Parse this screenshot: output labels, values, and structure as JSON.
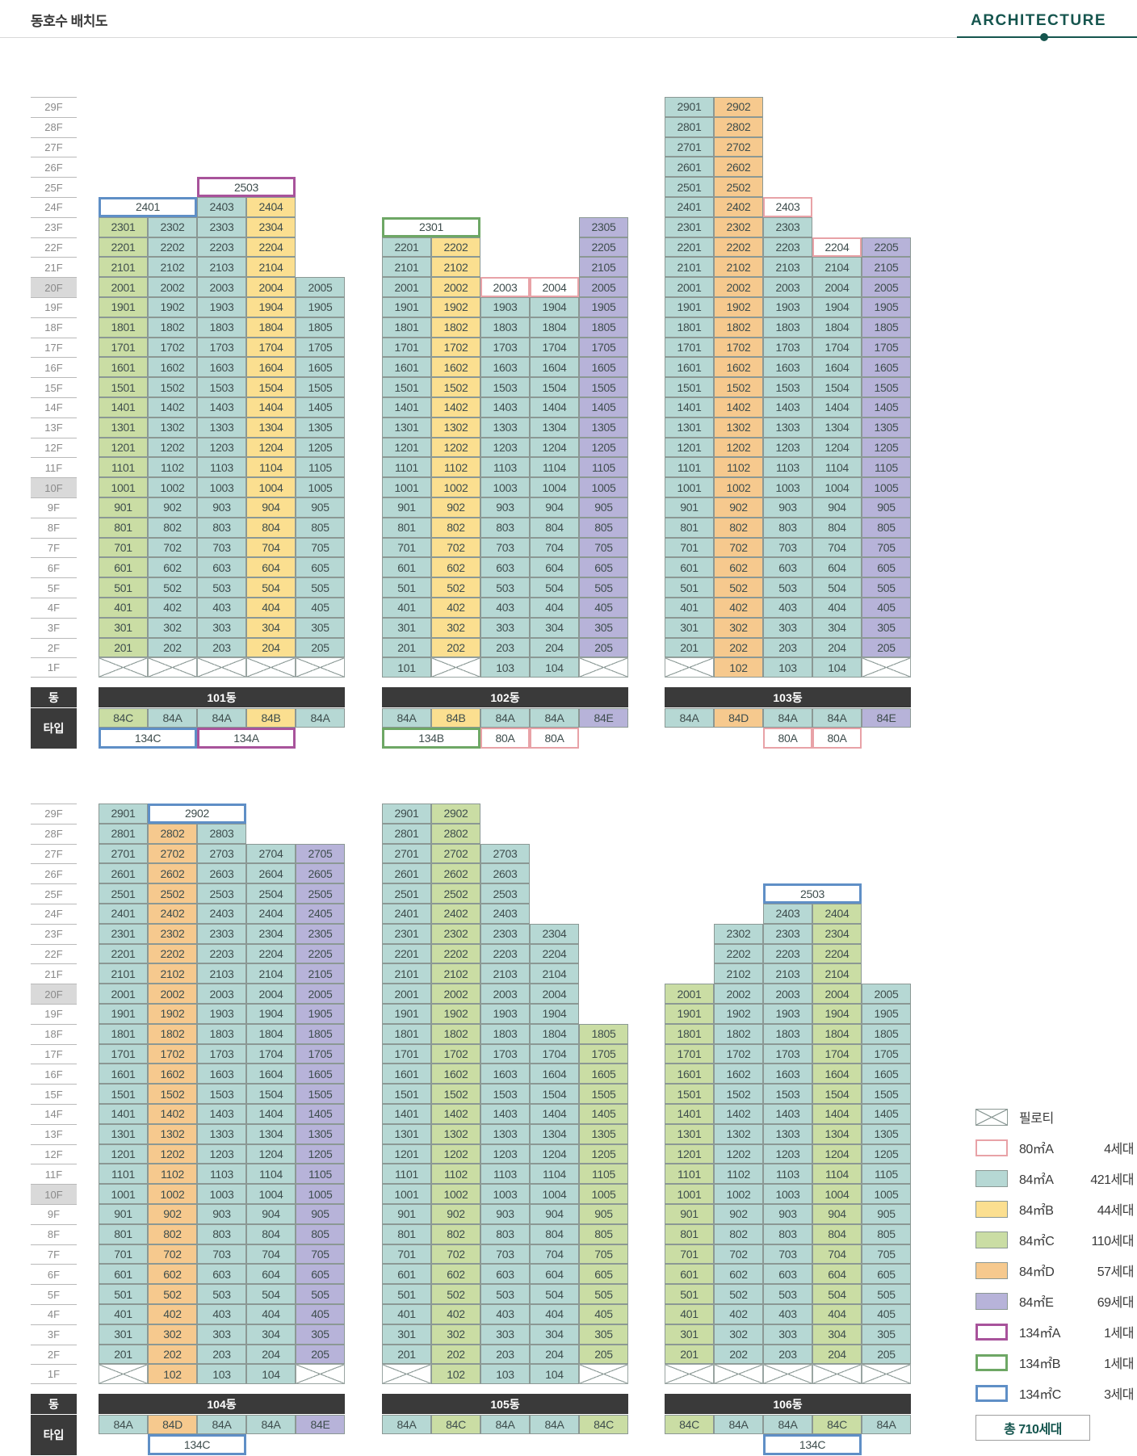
{
  "header": {
    "title": "동호수 배치도",
    "brand": "ARCHITECTURE"
  },
  "side_labels": {
    "dong": "동",
    "type": "타입"
  },
  "floors": [
    "29F",
    "28F",
    "27F",
    "26F",
    "25F",
    "24F",
    "23F",
    "22F",
    "21F",
    "20F",
    "19F",
    "18F",
    "17F",
    "16F",
    "15F",
    "14F",
    "13F",
    "12F",
    "11F",
    "10F",
    "9F",
    "8F",
    "7F",
    "6F",
    "5F",
    "4F",
    "3F",
    "2F",
    "1F"
  ],
  "highlighted_floors": [
    "20F",
    "10F"
  ],
  "colors": {
    "84A": "#b6d8d4",
    "84B": "#fbdf90",
    "84C": "#cadda4",
    "84D": "#f6c98e",
    "84E": "#b7b3d9",
    "80A": "#e8a2a7",
    "134A": "#a8539b",
    "134B": "#6ea765",
    "134C": "#5f8fc6",
    "bar": "#3a3a3a",
    "accent": "#15554e"
  },
  "blocks": [
    {
      "buildings": [
        {
          "name": "101동",
          "rows": [
            "",
            "",
            "",
            "",
            "||2503.134A*2||",
            "2401.134C*2||2403.A|2404.B|",
            "2301.C|2302.A|2303.A|2304.B|",
            "2201.C|2202.A|2203.A|2204.B|",
            "2101.C|2102.A|2103.A|2104.B|",
            "2001.C|2002.A|2003.A|2004.B|2005.A",
            "1901.C|1902.A|1903.A|1904.B|1905.A",
            "1801.C|1802.A|1803.A|1804.B|1805.A",
            "1701.C|1702.A|1703.A|1704.B|1705.A",
            "1601.C|1602.A|1603.A|1604.B|1605.A",
            "1501.C|1502.A|1503.A|1504.B|1505.A",
            "1401.C|1402.A|1403.A|1404.B|1405.A",
            "1301.C|1302.A|1303.A|1304.B|1305.A",
            "1201.C|1202.A|1203.A|1204.B|1205.A",
            "1101.C|1102.A|1103.A|1104.B|1105.A",
            "1001.C|1002.A|1003.A|1004.B|1005.A",
            "901.C|902.A|903.A|904.B|905.A",
            "801.C|802.A|803.A|804.B|805.A",
            "701.C|702.A|703.A|704.B|705.A",
            "601.C|602.A|603.A|604.B|605.A",
            "501.C|502.A|503.A|504.B|505.A",
            "401.C|402.A|403.A|404.B|405.A",
            "301.C|302.A|303.A|304.B|305.A",
            "201.C|202.A|203.A|204.B|205.A",
            "X|X|X|X|X"
          ],
          "types": "84C.C|84A.A|84A.A|84B.B|84A.A",
          "special": "134C.134C*2||134A.134A*2||"
        },
        {
          "name": "102동",
          "rows": [
            "",
            "",
            "",
            "",
            "",
            "",
            "2301.134B*2||||2305.E",
            "2201.A|2202.B|||2205.E",
            "2101.A|2102.B|||2105.E",
            "2001.A|2002.B|2003.80A|2004.80A|2005.E",
            "1901.A|1902.B|1903.A|1904.A|1905.E",
            "1801.A|1802.B|1803.A|1804.A|1805.E",
            "1701.A|1702.B|1703.A|1704.A|1705.E",
            "1601.A|1602.B|1603.A|1604.A|1605.E",
            "1501.A|1502.B|1503.A|1504.A|1505.E",
            "1401.A|1402.B|1403.A|1404.A|1405.E",
            "1301.A|1302.B|1303.A|1304.A|1305.E",
            "1201.A|1202.B|1203.A|1204.A|1205.E",
            "1101.A|1102.B|1103.A|1104.A|1105.E",
            "1001.A|1002.B|1003.A|1004.A|1005.E",
            "901.A|902.B|903.A|904.A|905.E",
            "801.A|802.B|803.A|804.A|805.E",
            "701.A|702.B|703.A|704.A|705.E",
            "601.A|602.B|603.A|604.A|605.E",
            "501.A|502.B|503.A|504.A|505.E",
            "401.A|402.B|403.A|404.A|405.E",
            "301.A|302.B|303.A|304.A|305.E",
            "201.A|202.B|203.A|204.A|205.E",
            "101.A|X|103.A|104.A|X"
          ],
          "types": "84A.A|84B.B|84A.A|84A.A|84E.E",
          "special": "134B.134B*2||80A.80A|80A.80A|"
        },
        {
          "name": "103동",
          "rows": [
            "2901.A|2902.D|||",
            "2801.A|2802.D|||",
            "2701.A|2702.D|||",
            "2601.A|2602.D|||",
            "2501.A|2502.D|||",
            "2401.A|2402.D|2403.80A||",
            "2301.A|2302.D|2303.A||",
            "2201.A|2202.D|2203.A|2204.80A|2205.E",
            "2101.A|2102.D|2103.A|2104.A|2105.E",
            "2001.A|2002.D|2003.A|2004.A|2005.E",
            "1901.A|1902.D|1903.A|1904.A|1905.E",
            "1801.A|1802.D|1803.A|1804.A|1805.E",
            "1701.A|1702.D|1703.A|1704.A|1705.E",
            "1601.A|1602.D|1603.A|1604.A|1605.E",
            "1501.A|1502.D|1503.A|1504.A|1505.E",
            "1401.A|1402.D|1403.A|1404.A|1405.E",
            "1301.A|1302.D|1303.A|1304.A|1305.E",
            "1201.A|1202.D|1203.A|1204.A|1205.E",
            "1101.A|1102.D|1103.A|1104.A|1105.E",
            "1001.A|1002.D|1003.A|1004.A|1005.E",
            "901.A|902.D|903.A|904.A|905.E",
            "801.A|802.D|803.A|804.A|805.E",
            "701.A|702.D|703.A|704.A|705.E",
            "601.A|602.D|603.A|604.A|605.E",
            "501.A|502.D|503.A|504.A|505.E",
            "401.A|402.D|403.A|404.A|405.E",
            "301.A|302.D|303.A|304.A|305.E",
            "201.A|202.D|203.A|204.A|205.E",
            "X|102.D|103.A|104.A|X"
          ],
          "types": "84A.A|84D.D|84A.A|84A.A|84E.E",
          "special": "||80A.80A|80A.80A|"
        }
      ]
    },
    {
      "buildings": [
        {
          "name": "104동",
          "rows": [
            "2901.A|2902.134C*2|||",
            "2801.A|2802.D|2803.A||",
            "2701.A|2702.D|2703.A|2704.A|2705.E",
            "2601.A|2602.D|2603.A|2604.A|2605.E",
            "2501.A|2502.D|2503.A|2504.A|2505.E",
            "2401.A|2402.D|2403.A|2404.A|2405.E",
            "2301.A|2302.D|2303.A|2304.A|2305.E",
            "2201.A|2202.D|2203.A|2204.A|2205.E",
            "2101.A|2102.D|2103.A|2104.A|2105.E",
            "2001.A|2002.D|2003.A|2004.A|2005.E",
            "1901.A|1902.D|1903.A|1904.A|1905.E",
            "1801.A|1802.D|1803.A|1804.A|1805.E",
            "1701.A|1702.D|1703.A|1704.A|1705.E",
            "1601.A|1602.D|1603.A|1604.A|1605.E",
            "1501.A|1502.D|1503.A|1504.A|1505.E",
            "1401.A|1402.D|1403.A|1404.A|1405.E",
            "1301.A|1302.D|1303.A|1304.A|1305.E",
            "1201.A|1202.D|1203.A|1204.A|1205.E",
            "1101.A|1102.D|1103.A|1104.A|1105.E",
            "1001.A|1002.D|1003.A|1004.A|1005.E",
            "901.A|902.D|903.A|904.A|905.E",
            "801.A|802.D|803.A|804.A|805.E",
            "701.A|702.D|703.A|704.A|705.E",
            "601.A|602.D|603.A|604.A|605.E",
            "501.A|502.D|503.A|504.A|505.E",
            "401.A|402.D|403.A|404.A|405.E",
            "301.A|302.D|303.A|304.A|305.E",
            "201.A|202.D|203.A|204.A|205.E",
            "X|102.D|103.A|104.A|X"
          ],
          "types": "84A.A|84D.D|84A.A|84A.A|84E.E",
          "special": "|134C.134C*2|||"
        },
        {
          "name": "105동",
          "rows": [
            "2901.A|2902.C|||",
            "2801.A|2802.C|||",
            "2701.A|2702.C|2703.A||",
            "2601.A|2602.C|2603.A||",
            "2501.A|2502.C|2503.A||",
            "2401.A|2402.C|2403.A||",
            "2301.A|2302.C|2303.A|2304.A|",
            "2201.A|2202.C|2203.A|2204.A|",
            "2101.A|2102.C|2103.A|2104.A|",
            "2001.A|2002.C|2003.A|2004.A|",
            "1901.A|1902.C|1903.A|1904.A|",
            "1801.A|1802.C|1803.A|1804.A|1805.C",
            "1701.A|1702.C|1703.A|1704.A|1705.C",
            "1601.A|1602.C|1603.A|1604.A|1605.C",
            "1501.A|1502.C|1503.A|1504.A|1505.C",
            "1401.A|1402.C|1403.A|1404.A|1405.C",
            "1301.A|1302.C|1303.A|1304.A|1305.C",
            "1201.A|1202.C|1203.A|1204.A|1205.C",
            "1101.A|1102.C|1103.A|1104.A|1105.C",
            "1001.A|1002.C|1003.A|1004.A|1005.C",
            "901.A|902.C|903.A|904.A|905.C",
            "801.A|802.C|803.A|804.A|805.C",
            "701.A|702.C|703.A|704.A|705.C",
            "601.A|602.C|603.A|604.A|605.C",
            "501.A|502.C|503.A|504.A|505.C",
            "401.A|402.C|403.A|404.A|405.C",
            "301.A|302.C|303.A|304.A|305.C",
            "201.A|202.C|203.A|204.A|205.C",
            "X|102.C|103.A|104.A|X"
          ],
          "types": "84A.A|84C.C|84A.A|84A.A|84C.C",
          "special": "||||"
        },
        {
          "name": "106동",
          "rows": [
            "",
            "",
            "",
            "",
            "||2503.134C*2||",
            "||2403.A|2404.C|",
            "|2302.A|2303.A|2304.C|",
            "|2202.A|2203.A|2204.C|",
            "|2102.A|2103.A|2104.C|",
            "2001.C|2002.A|2003.A|2004.C|2005.A",
            "1901.C|1902.A|1903.A|1904.C|1905.A",
            "1801.C|1802.A|1803.A|1804.C|1805.A",
            "1701.C|1702.A|1703.A|1704.C|1705.A",
            "1601.C|1602.A|1603.A|1604.C|1605.A",
            "1501.C|1502.A|1503.A|1504.C|1505.A",
            "1401.C|1402.A|1403.A|1404.C|1405.A",
            "1301.C|1302.A|1303.A|1304.C|1305.A",
            "1201.C|1202.A|1203.A|1204.C|1205.A",
            "1101.C|1102.A|1103.A|1104.C|1105.A",
            "1001.C|1002.A|1003.A|1004.C|1005.A",
            "901.C|902.A|903.A|904.C|905.A",
            "801.C|802.A|803.A|804.C|805.A",
            "701.C|702.A|703.A|704.C|705.A",
            "601.C|602.A|603.A|604.C|605.A",
            "501.C|502.A|503.A|504.C|505.A",
            "401.C|402.A|403.A|404.C|405.A",
            "301.C|302.A|303.A|304.C|305.A",
            "201.C|202.A|203.A|204.C|205.A",
            "X|X|X|X|X"
          ],
          "types": "84C.C|84A.A|84A.A|84C.C|84A.A",
          "special": "||134C.134C*2||"
        }
      ]
    }
  ],
  "legend": {
    "items": [
      {
        "type": "piloti",
        "label": "필로티",
        "count": ""
      },
      {
        "type": "80A",
        "label": "80㎡A",
        "count": "4세대"
      },
      {
        "type": "84A",
        "label": "84㎡A",
        "count": "421세대"
      },
      {
        "type": "84B",
        "label": "84㎡B",
        "count": "44세대"
      },
      {
        "type": "84C",
        "label": "84㎡C",
        "count": "110세대"
      },
      {
        "type": "84D",
        "label": "84㎡D",
        "count": "57세대"
      },
      {
        "type": "84E",
        "label": "84㎡E",
        "count": "69세대"
      },
      {
        "type": "134A",
        "label": "134㎡A",
        "count": "1세대"
      },
      {
        "type": "134B",
        "label": "134㎡B",
        "count": "1세대"
      },
      {
        "type": "134C",
        "label": "134㎡C",
        "count": "3세대"
      }
    ],
    "total": "총 710세대"
  }
}
